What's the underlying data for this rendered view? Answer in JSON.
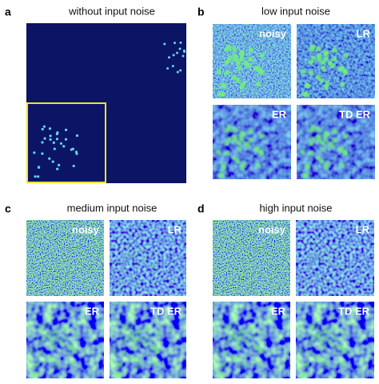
{
  "panels": [
    {
      "label": "a",
      "title": "without input noise"
    },
    {
      "label": "b",
      "title": "low input noise",
      "images": [
        "noisy",
        "LR",
        "ER",
        "TD ER"
      ]
    },
    {
      "label": "c",
      "title": "medium input noise",
      "images": [
        "noisy",
        "LR",
        "ER",
        "TD ER"
      ]
    },
    {
      "label": "d",
      "title": "high input noise",
      "images": [
        "noisy",
        "LR",
        "ER",
        "TD ER"
      ]
    }
  ]
}
